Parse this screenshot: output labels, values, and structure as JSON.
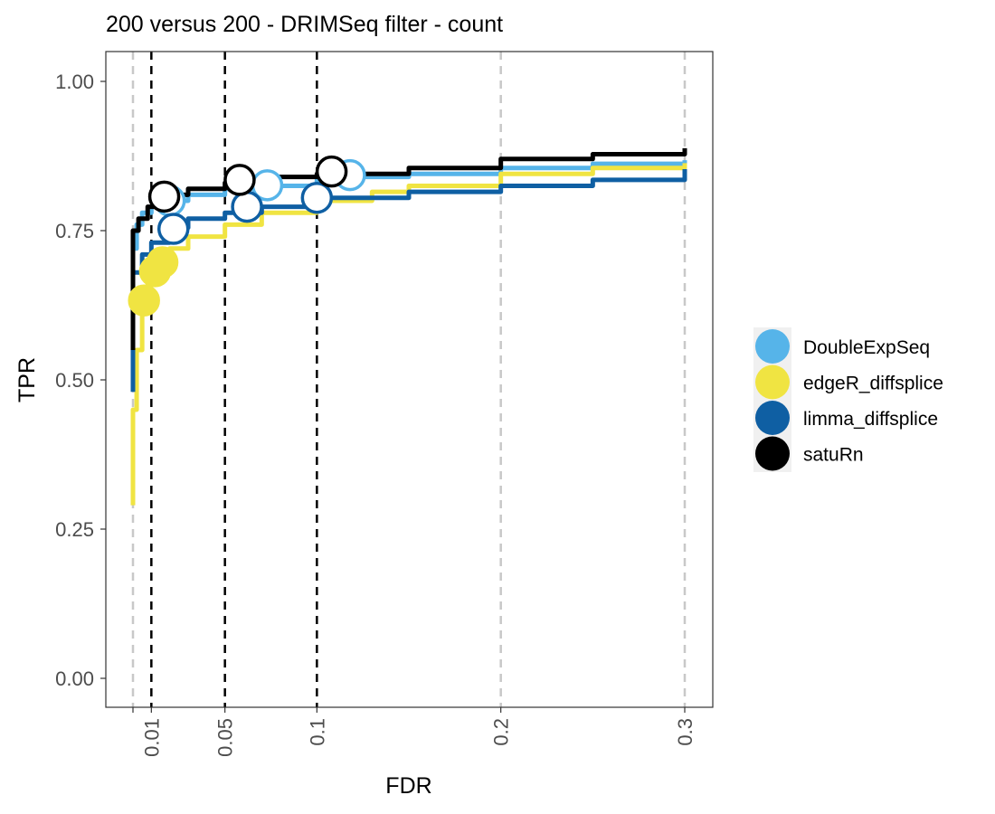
{
  "chart_data": {
    "type": "line",
    "title": "200 versus 200 - DRIMSeq filter - count",
    "xlabel": "FDR",
    "ylabel": "TPR",
    "xlim": [
      0,
      0.3
    ],
    "ylim": [
      0,
      1.0
    ],
    "x_ticks": [
      {
        "value": 0.01,
        "label": "0.01"
      },
      {
        "value": 0.05,
        "label": "0.05"
      },
      {
        "value": 0.1,
        "label": "0.1"
      },
      {
        "value": 0.2,
        "label": "0.2"
      },
      {
        "value": 0.3,
        "label": "0.3"
      }
    ],
    "y_ticks": [
      {
        "value": 0.0,
        "label": "0.00"
      },
      {
        "value": 0.25,
        "label": "0.25"
      },
      {
        "value": 0.5,
        "label": "0.50"
      },
      {
        "value": 0.75,
        "label": "0.75"
      },
      {
        "value": 1.0,
        "label": "1.00"
      }
    ],
    "reference_lines": {
      "x_gray_dashed": [
        0.0,
        0.2,
        0.3
      ],
      "x_black_dashed": [
        0.01,
        0.05,
        0.1
      ]
    },
    "grid": false,
    "legend_position": "right",
    "series": [
      {
        "name": "DoubleExpSeq",
        "color": "#56B4E9",
        "curve": [
          [
            0.0,
            0.5
          ],
          [
            0.0,
            0.72
          ],
          [
            0.002,
            0.76
          ],
          [
            0.005,
            0.78
          ],
          [
            0.01,
            0.79
          ],
          [
            0.02,
            0.8
          ],
          [
            0.03,
            0.81
          ],
          [
            0.05,
            0.82
          ],
          [
            0.07,
            0.825
          ],
          [
            0.1,
            0.835
          ],
          [
            0.12,
            0.84
          ],
          [
            0.15,
            0.845
          ],
          [
            0.2,
            0.855
          ],
          [
            0.25,
            0.862
          ],
          [
            0.3,
            0.868
          ]
        ],
        "points": [
          {
            "x": 0.02,
            "y": 0.8,
            "filled": false
          },
          {
            "x": 0.073,
            "y": 0.826,
            "filled": false
          },
          {
            "x": 0.118,
            "y": 0.843,
            "filled": false
          }
        ]
      },
      {
        "name": "edgeR_diffsplice",
        "color": "#F0E442",
        "curve": [
          [
            0.0,
            0.29
          ],
          [
            0.0,
            0.45
          ],
          [
            0.002,
            0.55
          ],
          [
            0.005,
            0.62
          ],
          [
            0.008,
            0.66
          ],
          [
            0.012,
            0.69
          ],
          [
            0.02,
            0.72
          ],
          [
            0.03,
            0.74
          ],
          [
            0.05,
            0.76
          ],
          [
            0.07,
            0.78
          ],
          [
            0.1,
            0.8
          ],
          [
            0.13,
            0.815
          ],
          [
            0.15,
            0.825
          ],
          [
            0.2,
            0.845
          ],
          [
            0.25,
            0.855
          ],
          [
            0.3,
            0.863
          ]
        ],
        "points": [
          {
            "x": 0.006,
            "y": 0.633,
            "filled": true
          },
          {
            "x": 0.012,
            "y": 0.682,
            "filled": true
          },
          {
            "x": 0.016,
            "y": 0.697,
            "filled": true
          }
        ]
      },
      {
        "name": "limma_diffsplice",
        "color": "#0F5FA3",
        "curve": [
          [
            0.0,
            0.48
          ],
          [
            0.0,
            0.68
          ],
          [
            0.005,
            0.71
          ],
          [
            0.01,
            0.73
          ],
          [
            0.02,
            0.755
          ],
          [
            0.03,
            0.77
          ],
          [
            0.05,
            0.78
          ],
          [
            0.07,
            0.79
          ],
          [
            0.1,
            0.805
          ],
          [
            0.15,
            0.815
          ],
          [
            0.2,
            0.825
          ],
          [
            0.25,
            0.835
          ],
          [
            0.3,
            0.853
          ]
        ],
        "points": [
          {
            "x": 0.022,
            "y": 0.753,
            "filled": false
          },
          {
            "x": 0.062,
            "y": 0.79,
            "filled": false
          },
          {
            "x": 0.1,
            "y": 0.805,
            "filled": false
          }
        ]
      },
      {
        "name": "satuRn",
        "color": "#000000",
        "curve": [
          [
            0.0,
            0.55
          ],
          [
            0.0,
            0.75
          ],
          [
            0.003,
            0.77
          ],
          [
            0.008,
            0.79
          ],
          [
            0.015,
            0.81
          ],
          [
            0.03,
            0.82
          ],
          [
            0.05,
            0.83
          ],
          [
            0.07,
            0.84
          ],
          [
            0.1,
            0.845
          ],
          [
            0.15,
            0.855
          ],
          [
            0.2,
            0.87
          ],
          [
            0.25,
            0.878
          ],
          [
            0.3,
            0.888
          ]
        ],
        "points": [
          {
            "x": 0.017,
            "y": 0.807,
            "filled": false
          },
          {
            "x": 0.058,
            "y": 0.835,
            "filled": false
          },
          {
            "x": 0.108,
            "y": 0.849,
            "filled": false
          }
        ]
      }
    ]
  }
}
